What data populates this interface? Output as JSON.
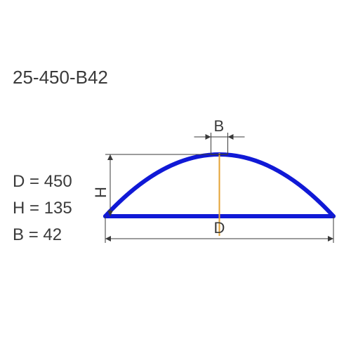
{
  "productCode": "25-450-B42",
  "params": {
    "D": {
      "label": "D",
      "value": 450
    },
    "H": {
      "label": "H",
      "value": 135
    },
    "B": {
      "label": "B",
      "value": 42
    }
  },
  "dimLabels": {
    "B": "B",
    "H": "H",
    "D": "D"
  },
  "colors": {
    "arc": "#1019d6",
    "dim": "#3a3a3a",
    "center": "#e4a233",
    "text": "#3a3a3a",
    "bg": "#ffffff"
  },
  "typography": {
    "codeSize": 26,
    "paramSize": 24,
    "dimLabelSize": 22
  },
  "geometry": {
    "arcLeft": 150,
    "arcRight": 475,
    "arcBaseY": 308,
    "arcTopY": 220,
    "arcStroke": 6,
    "bWidth": 24,
    "bDimY": 195,
    "hDimX": 157,
    "dDimY": 340,
    "arrowSize": 6
  }
}
